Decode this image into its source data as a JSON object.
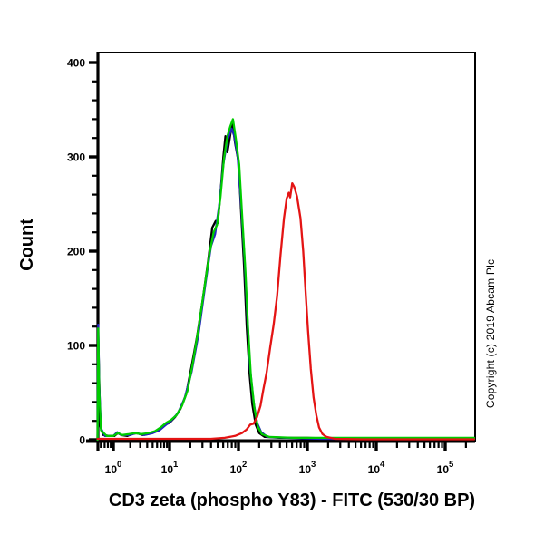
{
  "figure": {
    "background_color": "#ffffff",
    "y_axis_label": "Count",
    "x_axis_label": "CD3 zeta (phospho Y83) - FITC (530/30 BP)",
    "copyright_notice": "Copyright (c) 2019 Abcam Plc"
  },
  "chart_data": {
    "type": "line",
    "subtype": "flow-cytometry-histogram-overlay",
    "title": "",
    "xlabel": "CD3 zeta (phospho Y83) - FITC (530/30 BP)",
    "ylabel": "Count",
    "x_scale": "log10",
    "x_tick_base": "10",
    "x_tick_exponents": [
      0,
      1,
      2,
      3,
      4,
      5
    ],
    "x_tick_labels": [
      "10^0",
      "10^1",
      "10^2",
      "10^3",
      "10^4",
      "10^5"
    ],
    "y_ticks": [
      0,
      100,
      200,
      300,
      400
    ],
    "y_minor_step": 20,
    "ylim": [
      0,
      410
    ],
    "xlim_log10": [
      -0.28,
      5.43
    ],
    "grid": false,
    "legend": "none",
    "series": [
      {
        "name": "black-curve",
        "color": "#000000",
        "peak": {
          "x_log10": 1.91,
          "count": 337
        },
        "points": [
          [
            -0.28,
            0
          ],
          [
            -0.27,
            112
          ],
          [
            -0.25,
            60
          ],
          [
            -0.23,
            14
          ],
          [
            -0.18,
            5
          ],
          [
            -0.08,
            4
          ],
          [
            0.02,
            4
          ],
          [
            0.08,
            7
          ],
          [
            0.14,
            5
          ],
          [
            0.25,
            4
          ],
          [
            0.33,
            6
          ],
          [
            0.42,
            7
          ],
          [
            0.52,
            5
          ],
          [
            0.62,
            6
          ],
          [
            0.72,
            8
          ],
          [
            0.82,
            11
          ],
          [
            0.92,
            16
          ],
          [
            1.0,
            18
          ],
          [
            1.08,
            24
          ],
          [
            1.16,
            33
          ],
          [
            1.24,
            48
          ],
          [
            1.32,
            78
          ],
          [
            1.4,
            110
          ],
          [
            1.48,
            148
          ],
          [
            1.56,
            190
          ],
          [
            1.62,
            225
          ],
          [
            1.67,
            232
          ],
          [
            1.7,
            230
          ],
          [
            1.74,
            262
          ],
          [
            1.78,
            300
          ],
          [
            1.81,
            322
          ],
          [
            1.84,
            305
          ],
          [
            1.87,
            318
          ],
          [
            1.91,
            337
          ],
          [
            1.95,
            315
          ],
          [
            2.0,
            295
          ],
          [
            2.04,
            240
          ],
          [
            2.08,
            185
          ],
          [
            2.12,
            120
          ],
          [
            2.16,
            70
          ],
          [
            2.2,
            38
          ],
          [
            2.25,
            16
          ],
          [
            2.3,
            7
          ],
          [
            2.38,
            3
          ],
          [
            2.6,
            2
          ],
          [
            3.0,
            2
          ],
          [
            3.5,
            1
          ],
          [
            4.0,
            1
          ],
          [
            4.6,
            1
          ],
          [
            5.2,
            1
          ],
          [
            5.42,
            1
          ]
        ]
      },
      {
        "name": "blue-curve",
        "color": "#2323c0",
        "peak": {
          "x_log10": 1.9,
          "count": 330
        },
        "points": [
          [
            -0.28,
            0
          ],
          [
            -0.27,
            122
          ],
          [
            -0.25,
            55
          ],
          [
            -0.22,
            12
          ],
          [
            -0.15,
            4
          ],
          [
            0.0,
            4
          ],
          [
            0.07,
            8
          ],
          [
            0.14,
            5
          ],
          [
            0.3,
            5
          ],
          [
            0.4,
            7
          ],
          [
            0.55,
            5
          ],
          [
            0.7,
            7
          ],
          [
            0.82,
            10
          ],
          [
            0.92,
            15
          ],
          [
            1.02,
            20
          ],
          [
            1.12,
            28
          ],
          [
            1.22,
            44
          ],
          [
            1.32,
            72
          ],
          [
            1.42,
            112
          ],
          [
            1.52,
            165
          ],
          [
            1.6,
            205
          ],
          [
            1.66,
            218
          ],
          [
            1.72,
            248
          ],
          [
            1.78,
            292
          ],
          [
            1.84,
            318
          ],
          [
            1.9,
            330
          ],
          [
            1.94,
            322
          ],
          [
            1.99,
            300
          ],
          [
            2.04,
            248
          ],
          [
            2.09,
            190
          ],
          [
            2.13,
            128
          ],
          [
            2.17,
            75
          ],
          [
            2.22,
            40
          ],
          [
            2.27,
            18
          ],
          [
            2.33,
            8
          ],
          [
            2.42,
            3
          ],
          [
            2.7,
            2
          ],
          [
            3.2,
            1
          ],
          [
            3.8,
            1
          ],
          [
            4.4,
            1
          ],
          [
            5.0,
            1
          ],
          [
            5.42,
            1
          ]
        ]
      },
      {
        "name": "green-curve",
        "color": "#00cc00",
        "peak": {
          "x_log10": 1.92,
          "count": 340
        },
        "points": [
          [
            -0.28,
            0
          ],
          [
            -0.27,
            118
          ],
          [
            -0.25,
            50
          ],
          [
            -0.22,
            10
          ],
          [
            -0.12,
            4
          ],
          [
            0.0,
            4
          ],
          [
            0.08,
            7
          ],
          [
            0.16,
            5
          ],
          [
            0.28,
            6
          ],
          [
            0.38,
            7
          ],
          [
            0.5,
            6
          ],
          [
            0.62,
            7
          ],
          [
            0.74,
            9
          ],
          [
            0.84,
            13
          ],
          [
            0.94,
            18
          ],
          [
            1.02,
            21
          ],
          [
            1.1,
            26
          ],
          [
            1.18,
            36
          ],
          [
            1.26,
            52
          ],
          [
            1.34,
            82
          ],
          [
            1.42,
            118
          ],
          [
            1.5,
            158
          ],
          [
            1.58,
            198
          ],
          [
            1.64,
            220
          ],
          [
            1.69,
            228
          ],
          [
            1.74,
            258
          ],
          [
            1.79,
            298
          ],
          [
            1.84,
            322
          ],
          [
            1.88,
            332
          ],
          [
            1.92,
            340
          ],
          [
            1.96,
            320
          ],
          [
            2.01,
            292
          ],
          [
            2.05,
            242
          ],
          [
            2.1,
            180
          ],
          [
            2.14,
            118
          ],
          [
            2.18,
            68
          ],
          [
            2.23,
            34
          ],
          [
            2.28,
            14
          ],
          [
            2.34,
            6
          ],
          [
            2.45,
            3
          ],
          [
            2.8,
            2
          ],
          [
            3.3,
            2
          ],
          [
            3.9,
            2
          ],
          [
            4.5,
            2
          ],
          [
            5.1,
            2
          ],
          [
            5.42,
            2
          ]
        ]
      },
      {
        "name": "red-curve",
        "color": "#e41414",
        "peak": {
          "x_log10": 2.78,
          "count": 272
        },
        "points": [
          [
            -0.28,
            1
          ],
          [
            0.2,
            1
          ],
          [
            0.8,
            1
          ],
          [
            1.3,
            1
          ],
          [
            1.6,
            1
          ],
          [
            1.8,
            2
          ],
          [
            1.95,
            4
          ],
          [
            2.05,
            7
          ],
          [
            2.12,
            11
          ],
          [
            2.17,
            16
          ],
          [
            2.22,
            17
          ],
          [
            2.27,
            24
          ],
          [
            2.32,
            36
          ],
          [
            2.36,
            53
          ],
          [
            2.41,
            72
          ],
          [
            2.46,
            98
          ],
          [
            2.51,
            122
          ],
          [
            2.56,
            152
          ],
          [
            2.61,
            196
          ],
          [
            2.66,
            235
          ],
          [
            2.7,
            256
          ],
          [
            2.73,
            262
          ],
          [
            2.75,
            257
          ],
          [
            2.78,
            272
          ],
          [
            2.81,
            268
          ],
          [
            2.85,
            258
          ],
          [
            2.9,
            235
          ],
          [
            2.94,
            200
          ],
          [
            2.98,
            150
          ],
          [
            3.01,
            115
          ],
          [
            3.05,
            75
          ],
          [
            3.09,
            45
          ],
          [
            3.13,
            26
          ],
          [
            3.17,
            13
          ],
          [
            3.22,
            6
          ],
          [
            3.28,
            3
          ],
          [
            3.4,
            1
          ],
          [
            3.8,
            0.5
          ],
          [
            4.4,
            0.5
          ],
          [
            5.0,
            0.5
          ],
          [
            5.42,
            0.5
          ]
        ]
      }
    ]
  }
}
